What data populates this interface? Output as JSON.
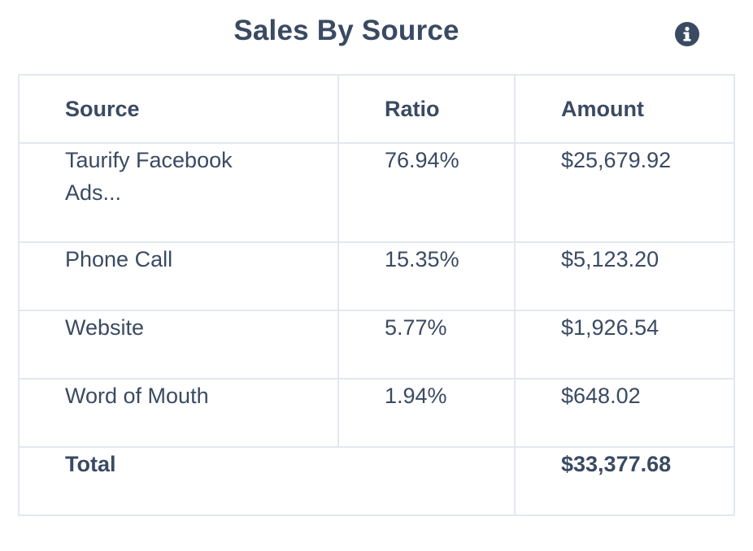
{
  "widget": {
    "title": "Sales By Source",
    "info_icon": "info-circle-icon"
  },
  "table": {
    "headers": [
      "Source",
      "Ratio",
      "Amount"
    ],
    "rows": [
      {
        "source": "Taurify Facebook Ads...",
        "ratio": "76.94%",
        "amount": "$25,679.92"
      },
      {
        "source": "Phone Call",
        "ratio": "15.35%",
        "amount": "$5,123.20"
      },
      {
        "source": "Website",
        "ratio": "5.77%",
        "amount": "$1,926.54"
      },
      {
        "source": "Word of Mouth",
        "ratio": "1.94%",
        "amount": "$648.02"
      }
    ],
    "total": {
      "label": "Total",
      "amount": "$33,377.68"
    }
  },
  "colors": {
    "text": "#3a4a62",
    "border": "#e3e8ef",
    "background": "#ffffff"
  }
}
